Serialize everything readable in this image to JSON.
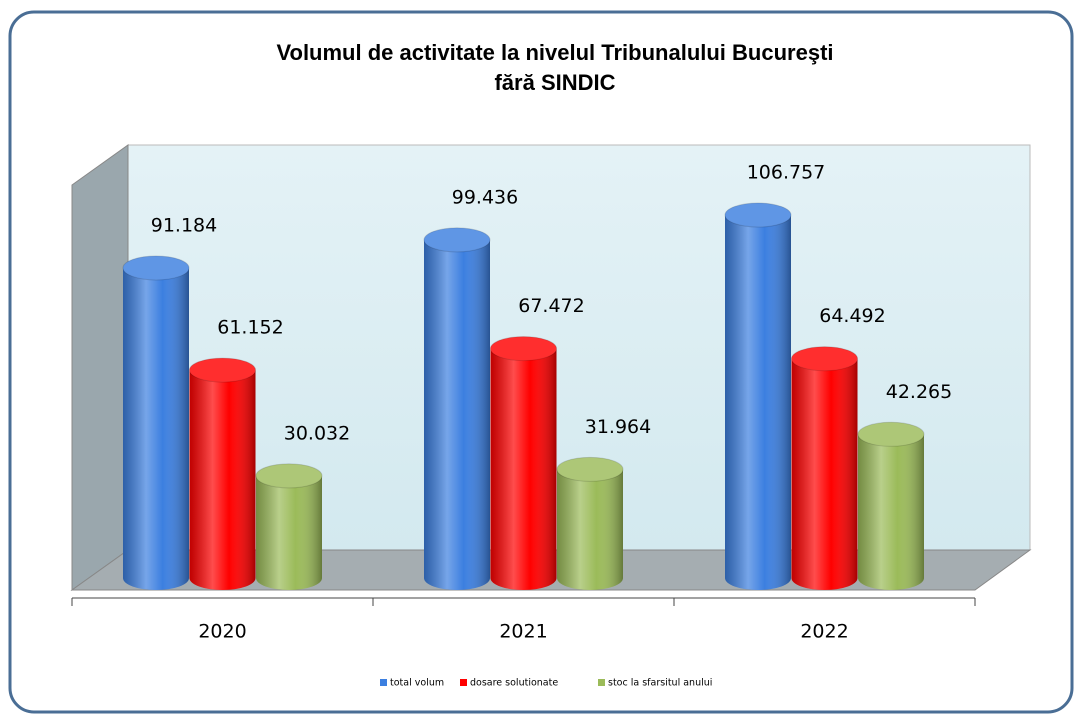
{
  "chart_data": {
    "type": "bar3d",
    "title": "Volumul de activitate la nivelul Tribunalului Bucureşti",
    "subtitle": "fără SINDIC",
    "categories": [
      "2020",
      "2021",
      "2022"
    ],
    "series": [
      {
        "name": "total volum",
        "color": "#3c7fe0",
        "values": [
          91184,
          99436,
          106757
        ],
        "value_labels": [
          "91.184",
          "99.436",
          "106.757"
        ]
      },
      {
        "name": "dosare solutionate",
        "color": "#ff0000",
        "values": [
          61152,
          67472,
          64492
        ],
        "value_labels": [
          "61.152",
          "67.472",
          "64.492"
        ]
      },
      {
        "name": "stoc la sfarsitul anului",
        "color": "#9bbb59",
        "values": [
          30032,
          31964,
          42265
        ],
        "value_labels": [
          "30.032",
          "31.964",
          "42.265"
        ]
      }
    ],
    "ylim": [
      0,
      120000
    ],
    "legend": "bottom"
  }
}
